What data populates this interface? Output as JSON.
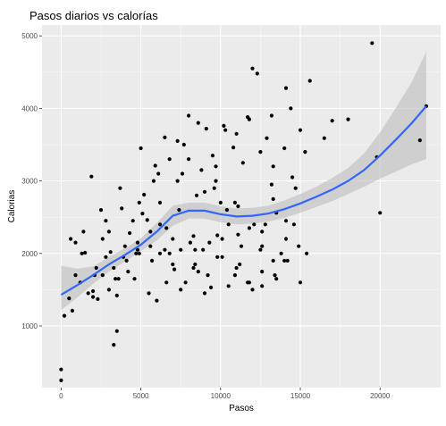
{
  "chart_data": {
    "type": "scatter",
    "title": "Pasos diarios vs calorías",
    "xlabel": "Pasos",
    "ylabel": "Calorias",
    "xlim": [
      -1200,
      23800
    ],
    "ylim": [
      150,
      5150
    ],
    "x_ticks": [
      0,
      5000,
      10000,
      15000,
      20000
    ],
    "x_tick_labels": [
      "0",
      "5000",
      "10000",
      "15000",
      "20000"
    ],
    "y_ticks": [
      1000,
      2000,
      3000,
      4000,
      5000
    ],
    "y_tick_labels": [
      "1000",
      "2000",
      "3000",
      "4000",
      "5000"
    ],
    "grid": true,
    "legend": "none",
    "colors": {
      "panel": "#ebebeb",
      "grid_major": "#ffffff",
      "point": "#000000",
      "smooth_line": "#3366ff",
      "ribbon": "#bdbdbd"
    },
    "smooth": {
      "method": "loess",
      "x": [
        0,
        1000,
        2000,
        3000,
        4000,
        5000,
        6000,
        7000,
        8000,
        9000,
        10000,
        11000,
        12000,
        13000,
        14000,
        15000,
        16000,
        17000,
        18000,
        19000,
        20000,
        21000,
        22000,
        22900
      ],
      "y": [
        1430,
        1560,
        1700,
        1850,
        1980,
        2120,
        2300,
        2520,
        2590,
        2590,
        2540,
        2510,
        2520,
        2550,
        2610,
        2690,
        2780,
        2880,
        3000,
        3150,
        3350,
        3570,
        3800,
        4030
      ],
      "lower": [
        1220,
        1390,
        1580,
        1750,
        1890,
        2030,
        2180,
        2380,
        2480,
        2480,
        2430,
        2400,
        2410,
        2440,
        2490,
        2560,
        2640,
        2720,
        2820,
        2920,
        3030,
        3130,
        3230,
        3300
      ],
      "upper": [
        1830,
        1790,
        1820,
        1950,
        2070,
        2210,
        2420,
        2660,
        2700,
        2700,
        2650,
        2620,
        2630,
        2660,
        2730,
        2820,
        2920,
        3040,
        3180,
        3380,
        3670,
        4010,
        4370,
        4780
      ]
    },
    "points": {
      "x": [
        0,
        0,
        200,
        500,
        700,
        600,
        900,
        1200,
        1500,
        1700,
        1900,
        2100,
        2300,
        2600,
        2800,
        3000,
        3300,
        3500,
        3800,
        4100,
        4300,
        4600,
        4900,
        5200,
        5400,
        5600,
        5900,
        6200,
        6500,
        6800,
        7100,
        7400,
        7700,
        8000,
        8300,
        8600,
        8900,
        9100,
        9400,
        9700,
        10000,
        10200,
        10500,
        10800,
        11100,
        11400,
        11700,
        12000,
        12300,
        12600,
        12900,
        13200,
        13500,
        13800,
        14100,
        14400,
        14700,
        15000,
        15300,
        15600,
        16500,
        17000,
        18000,
        19500,
        19800,
        20000,
        22500,
        22900,
        3100,
        3500,
        900,
        1400,
        2000,
        2600,
        3300,
        4000,
        4700,
        5500,
        6200,
        7000,
        7800,
        8600,
        9300,
        10100,
        10900,
        11700,
        12500,
        13300,
        14100,
        14900,
        1300,
        2200,
        3000,
        3900,
        4800,
        5700,
        6600,
        7500,
        8400,
        9200,
        10100,
        11000,
        11800,
        12600,
        13400,
        14200,
        15000,
        2500,
        3700,
        4900,
        6100,
        7300,
        8500,
        9700,
        10900,
        12100,
        13300,
        14500,
        2800,
        4200,
        5600,
        7000,
        8400,
        9800,
        11200,
        12600,
        14000,
        15400,
        2000,
        3400,
        4800,
        6200,
        7600,
        9000,
        10400,
        11800,
        13200,
        14600,
        4500,
        6000,
        7500,
        9000,
        10500,
        12000,
        13500,
        5000,
        6500,
        8000,
        9500,
        11000,
        12500,
        14000,
        5800,
        7300,
        8800,
        10300,
        11800,
        13300,
        6800,
        8300,
        9800,
        11300,
        12800,
        3600,
        5100,
        6600,
        8100,
        9600,
        11100,
        12600,
        14100
      ],
      "y": [
        400,
        250,
        1140,
        1380,
        1210,
        2200,
        2150,
        1600,
        2010,
        1450,
        3060,
        1700,
        1370,
        2200,
        2450,
        1500,
        740,
        1420,
        2620,
        1900,
        2280,
        1650,
        2000,
        2810,
        2460,
        2100,
        3210,
        2000,
        2050,
        3300,
        1780,
        2600,
        3500,
        3900,
        2240,
        3800,
        2050,
        3720,
        1530,
        3000,
        2700,
        3760,
        2400,
        3460,
        2260,
        3250,
        3880,
        4550,
        4480,
        2100,
        3590,
        3900,
        2560,
        2000,
        4280,
        4000,
        2900,
        3700,
        3400,
        4380,
        3590,
        3830,
        3850,
        4900,
        3330,
        2560,
        3560,
        4030,
        2020,
        930,
        1700,
        2300,
        1480,
        1700,
        1800,
        2100,
        2000,
        1450,
        2400,
        1850,
        1600,
        1750,
        2150,
        1950,
        1700,
        1600,
        2050,
        1900,
        2200,
        2100,
        2000,
        1800,
        2300,
        1950,
        2150,
        1900,
        1600,
        2050,
        1850,
        1700,
        2200,
        1800,
        1600,
        1550,
        1700,
        1900,
        1600,
        2600,
        2900,
        2700,
        3100,
        3000,
        2800,
        3200,
        2700,
        2400,
        3200,
        3050,
        1950,
        1750,
        2300,
        2200,
        2050,
        1950,
        1850,
        1750,
        1900,
        2000,
        1400,
        1650,
        2050,
        2700,
        3100,
        2850,
        2600,
        2350,
        2950,
        2400,
        2450,
        1350,
        1500,
        1450,
        1550,
        1500,
        1650,
        3450,
        3600,
        3300,
        3350,
        3650,
        3400,
        3450,
        3000,
        3550,
        3150,
        3700,
        3850,
        2750,
        2000,
        1800,
        2250,
        2100,
        2400,
        1650,
        2550,
        2350,
        2150,
        2900,
        2650,
        2300,
        2450
      ]
    }
  }
}
